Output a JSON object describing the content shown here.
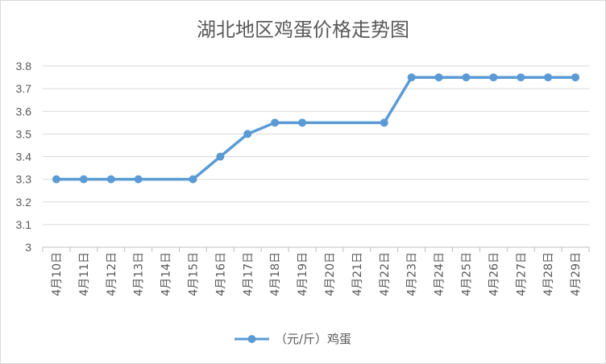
{
  "chart_data": {
    "type": "line",
    "title": "湖北地区鸡蛋价格走势图",
    "xlabel": "",
    "ylabel": "",
    "ylim": [
      3,
      3.8
    ],
    "yticks": [
      "3",
      "3.1",
      "3.2",
      "3.3",
      "3.4",
      "3.5",
      "3.6",
      "3.7",
      "3.8"
    ],
    "grid": true,
    "legend_position": "bottom",
    "categories": [
      "4月10日",
      "4月11日",
      "4月12日",
      "4月13日",
      "4月14日",
      "4月15日",
      "4月16日",
      "4月17日",
      "4月18日",
      "4月19日",
      "4月20日",
      "4月21日",
      "4月22日",
      "4月23日",
      "4月24日",
      "4月25日",
      "4月26日",
      "4月27日",
      "4月28日",
      "4月29日"
    ],
    "series": [
      {
        "name": "（元/斤）鸡蛋",
        "color": "#5b9bd5",
        "values": [
          3.3,
          3.3,
          3.3,
          3.3,
          null,
          3.3,
          3.4,
          3.5,
          3.55,
          3.55,
          null,
          null,
          3.55,
          3.75,
          3.75,
          3.75,
          3.75,
          3.75,
          3.75,
          3.75
        ]
      }
    ]
  }
}
